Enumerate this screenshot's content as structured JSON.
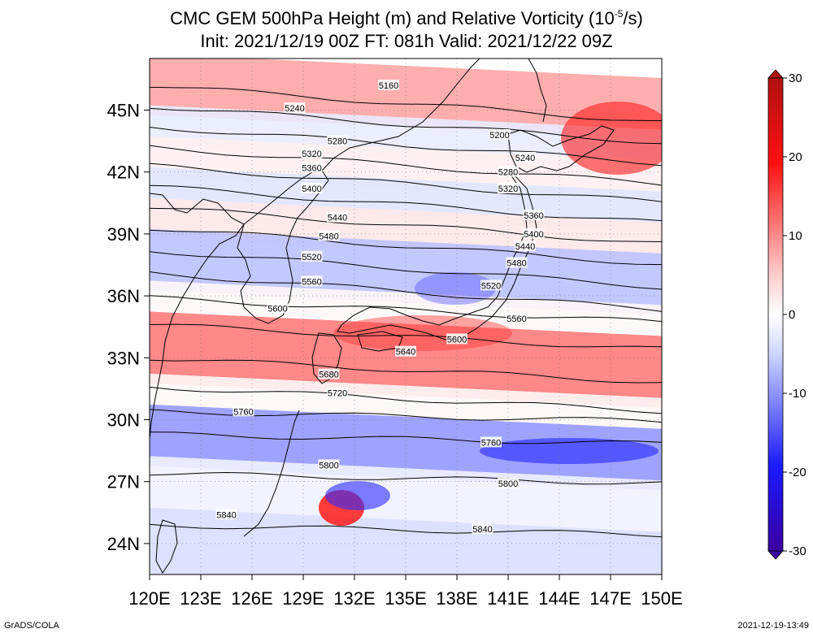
{
  "title": {
    "line1": "CMC GEM 500hPa Height (m) and Relative Vorticity (10",
    "line1_sup": "-5",
    "line1_end": "/s)",
    "line2": "Init: 2021/12/19 00Z  FT: 081h  Valid: 2021/12/22 09Z"
  },
  "axes": {
    "lon_labels": [
      "120E",
      "123E",
      "126E",
      "129E",
      "132E",
      "135E",
      "138E",
      "141E",
      "144E",
      "147E",
      "150E"
    ],
    "lat_labels": [
      "45N",
      "42N",
      "39N",
      "36N",
      "33N",
      "30N",
      "27N",
      "24N"
    ],
    "lon_range": [
      120,
      150
    ],
    "lat_range": [
      22.5,
      47.5
    ]
  },
  "colorbar": {
    "ticks": [
      "30",
      "20",
      "10",
      "0",
      "-10",
      "-20",
      "-30"
    ],
    "range": [
      -30,
      30
    ],
    "colors": {
      "max": "#b01010",
      "strong_pos": "#ff1010",
      "light_pos": "#ffd0d0",
      "zero": "#ffffff",
      "light_neg": "#d0d8ff",
      "strong_neg": "#1a1aff",
      "min": "#3a00a0"
    }
  },
  "contours": [
    {
      "label": "5160",
      "lat": 46.2
    },
    {
      "label": "5200",
      "lat": 45.2
    },
    {
      "label": "5240",
      "lat": 44.2
    },
    {
      "label": "5280",
      "lat": 43.2
    },
    {
      "label": "5320",
      "lat": 42.3
    },
    {
      "label": "5360",
      "lat": 41.3
    },
    {
      "label": "5400",
      "lat": 40.3
    },
    {
      "label": "5440",
      "lat": 39.3
    },
    {
      "label": "5480",
      "lat": 38.2
    },
    {
      "label": "5520",
      "lat": 37.1
    },
    {
      "label": "5560",
      "lat": 35.9
    },
    {
      "label": "5600",
      "lat": 34.6
    },
    {
      "label": "5640",
      "lat": 33.0
    },
    {
      "label": "5680",
      "lat": 31.6
    },
    {
      "label": "5720",
      "lat": 30.4
    },
    {
      "label": "5760",
      "lat": 29.3
    },
    {
      "label": "5800",
      "lat": 27.4
    },
    {
      "label": "5840",
      "lat": 24.9
    }
  ],
  "contour_labels": [
    {
      "text": "5160",
      "lon": 134.0,
      "lat": 46.2
    },
    {
      "text": "5240",
      "lon": 128.5,
      "lat": 45.1
    },
    {
      "text": "5200",
      "lon": 140.5,
      "lat": 43.8
    },
    {
      "text": "5280",
      "lon": 131.0,
      "lat": 43.5
    },
    {
      "text": "5240",
      "lon": 142.0,
      "lat": 42.7
    },
    {
      "text": "5320",
      "lon": 129.5,
      "lat": 42.9
    },
    {
      "text": "5360",
      "lon": 129.5,
      "lat": 42.2
    },
    {
      "text": "5280",
      "lon": 141.0,
      "lat": 42.0
    },
    {
      "text": "5400",
      "lon": 129.5,
      "lat": 41.2
    },
    {
      "text": "5320",
      "lon": 141.0,
      "lat": 41.2
    },
    {
      "text": "5360",
      "lon": 142.5,
      "lat": 39.9
    },
    {
      "text": "5440",
      "lon": 131.0,
      "lat": 39.8
    },
    {
      "text": "5400",
      "lon": 142.5,
      "lat": 39.0
    },
    {
      "text": "5480",
      "lon": 130.5,
      "lat": 38.9
    },
    {
      "text": "5440",
      "lon": 142.0,
      "lat": 38.4
    },
    {
      "text": "5520",
      "lon": 129.5,
      "lat": 37.9
    },
    {
      "text": "5480",
      "lon": 141.5,
      "lat": 37.6
    },
    {
      "text": "5560",
      "lon": 129.5,
      "lat": 36.7
    },
    {
      "text": "5520",
      "lon": 140.0,
      "lat": 36.5
    },
    {
      "text": "5600",
      "lon": 127.5,
      "lat": 35.4
    },
    {
      "text": "5560",
      "lon": 141.5,
      "lat": 34.9
    },
    {
      "text": "5600",
      "lon": 138.0,
      "lat": 33.9
    },
    {
      "text": "5640",
      "lon": 135.0,
      "lat": 33.3
    },
    {
      "text": "5680",
      "lon": 130.5,
      "lat": 32.2
    },
    {
      "text": "5720",
      "lon": 131.0,
      "lat": 31.3
    },
    {
      "text": "5760",
      "lon": 125.5,
      "lat": 30.4
    },
    {
      "text": "5760",
      "lon": 140.0,
      "lat": 28.9
    },
    {
      "text": "5800",
      "lon": 130.5,
      "lat": 27.8
    },
    {
      "text": "5800",
      "lon": 141.0,
      "lat": 26.9
    },
    {
      "text": "5840",
      "lon": 124.5,
      "lat": 25.4
    },
    {
      "text": "5840",
      "lon": 139.5,
      "lat": 24.7
    }
  ],
  "vorticity_bands": [
    {
      "lat_top": 47.5,
      "lat_bot": 45.0,
      "value": 8
    },
    {
      "lat_top": 45.0,
      "lat_bot": 43.5,
      "value": -3
    },
    {
      "lat_top": 43.5,
      "lat_bot": 42.0,
      "value": 2
    },
    {
      "lat_top": 42.0,
      "lat_bot": 40.5,
      "value": -4
    },
    {
      "lat_top": 40.5,
      "lat_bot": 39.0,
      "value": 3
    },
    {
      "lat_top": 39.0,
      "lat_bot": 36.5,
      "value": -7
    },
    {
      "lat_top": 36.5,
      "lat_bot": 35.0,
      "value": 1
    },
    {
      "lat_top": 35.0,
      "lat_bot": 32.0,
      "value": 10
    },
    {
      "lat_top": 32.0,
      "lat_bot": 30.5,
      "value": 1
    },
    {
      "lat_top": 30.5,
      "lat_bot": 28.0,
      "value": -9
    },
    {
      "lat_top": 28.0,
      "lat_bot": 25.5,
      "value": -2
    },
    {
      "lat_top": 25.5,
      "lat_bot": 22.5,
      "value": -5
    }
  ],
  "footer": {
    "left": "GrADS/COLA",
    "right": "2021-12-19-13:49"
  }
}
